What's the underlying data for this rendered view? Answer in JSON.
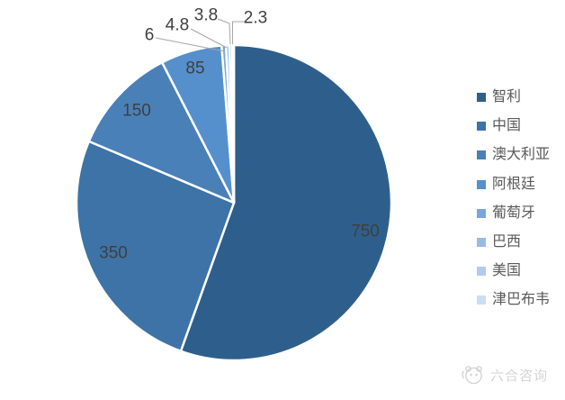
{
  "chart_data": {
    "type": "pie",
    "title": "",
    "categories": [
      "智利",
      "中国",
      "澳大利亚",
      "阿根廷",
      "葡萄牙",
      "巴西",
      "美国",
      "津巴布韦"
    ],
    "values": [
      750,
      350,
      150,
      85,
      6,
      4.8,
      3.8,
      2.3
    ],
    "value_labels": [
      "750",
      "350",
      "150",
      "85",
      "6",
      "4.8",
      "3.8",
      "2.3"
    ],
    "colors": [
      "#2E5F8C",
      "#3D73A6",
      "#4A80B8",
      "#5590CC",
      "#79A7DB",
      "#97BBE4",
      "#B1CBEC",
      "#CBDDF3"
    ],
    "start_angle": 0,
    "direction": "clockwise",
    "grid": false,
    "legend_position": "right",
    "slice_border_color": "#FFFFFF",
    "data_label_color": "#3F3F3F",
    "leader_line_color": "#A6A6A6"
  },
  "legend": {
    "text_color": "#595959"
  },
  "watermark": {
    "icon": "panda-logo-icon",
    "text": "六合咨询",
    "color": "#D4D4D4"
  }
}
